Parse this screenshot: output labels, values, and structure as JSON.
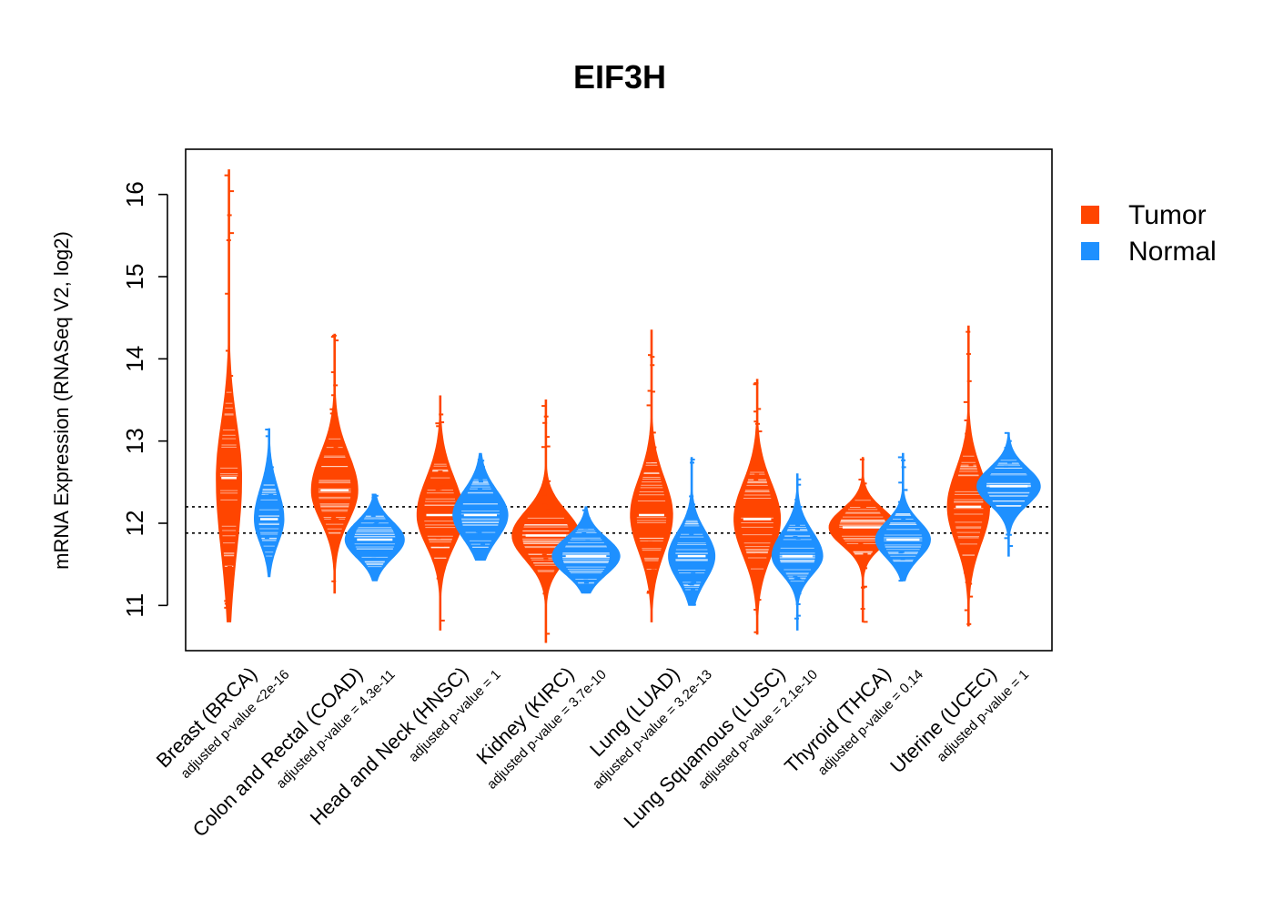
{
  "chart_data": {
    "type": "violin",
    "title": "EIF3H",
    "ylabel": "mRNA Expression (RNASeq V2, log2)",
    "xlabel": "",
    "ylim": [
      10.45,
      16.55
    ],
    "yticks": [
      11,
      12,
      13,
      14,
      15,
      16
    ],
    "grid": false,
    "legend_position": "top-right",
    "reference_lines": [
      11.88,
      12.2
    ],
    "series": [
      {
        "name": "Tumor",
        "color": "#FF4500"
      },
      {
        "name": "Normal",
        "color": "#1E90FF"
      }
    ],
    "categories": [
      {
        "label": "Breast (BRCA)",
        "pvalue": "adjusted p-value <2e-16",
        "tumor": {
          "median": 12.55,
          "q1": 11.95,
          "q3": 13.0,
          "min": 10.8,
          "max": 16.3,
          "width": 0.12
        },
        "normal": {
          "median": 12.05,
          "q1": 11.85,
          "q3": 12.3,
          "min": 11.35,
          "max": 13.15,
          "width": 0.14
        }
      },
      {
        "label": "Colon and Rectal (COAD)",
        "pvalue": "adjusted p-value = 4.3e-11",
        "tumor": {
          "median": 12.4,
          "q1": 12.15,
          "q3": 12.7,
          "min": 11.15,
          "max": 14.3,
          "width": 0.22
        },
        "normal": {
          "median": 11.8,
          "q1": 11.65,
          "q3": 11.95,
          "min": 11.3,
          "max": 12.35,
          "width": 0.28
        }
      },
      {
        "label": "Head and Neck (HNSC)",
        "pvalue": "adjusted p-value = 1",
        "tumor": {
          "median": 12.1,
          "q1": 11.85,
          "q3": 12.4,
          "min": 10.7,
          "max": 13.55,
          "width": 0.22
        },
        "normal": {
          "median": 12.1,
          "q1": 11.9,
          "q3": 12.3,
          "min": 11.55,
          "max": 12.85,
          "width": 0.26
        }
      },
      {
        "label": "Kidney (KIRC)",
        "pvalue": "adjusted p-value = 3.7e-10",
        "tumor": {
          "median": 11.85,
          "q1": 11.65,
          "q3": 12.05,
          "min": 10.55,
          "max": 13.5,
          "width": 0.32
        },
        "normal": {
          "median": 11.6,
          "q1": 11.45,
          "q3": 11.75,
          "min": 11.15,
          "max": 12.2,
          "width": 0.32
        }
      },
      {
        "label": "Lung (LUAD)",
        "pvalue": "adjusted p-value = 3.2e-13",
        "tumor": {
          "median": 12.1,
          "q1": 11.8,
          "q3": 12.4,
          "min": 10.8,
          "max": 14.35,
          "width": 0.2
        },
        "normal": {
          "median": 11.6,
          "q1": 11.4,
          "q3": 11.8,
          "min": 11.0,
          "max": 12.8,
          "width": 0.22
        }
      },
      {
        "label": "Lung Squamous (LUSC)",
        "pvalue": "adjusted p-value = 2.1e-10",
        "tumor": {
          "median": 12.05,
          "q1": 11.75,
          "q3": 12.35,
          "min": 10.65,
          "max": 13.75,
          "width": 0.22
        },
        "normal": {
          "median": 11.6,
          "q1": 11.45,
          "q3": 11.8,
          "min": 10.7,
          "max": 12.6,
          "width": 0.24
        }
      },
      {
        "label": "Thyroid (THCA)",
        "pvalue": "adjusted p-value = 0.14",
        "tumor": {
          "median": 11.95,
          "q1": 11.8,
          "q3": 12.1,
          "min": 10.8,
          "max": 12.8,
          "width": 0.32
        },
        "normal": {
          "median": 11.8,
          "q1": 11.65,
          "q3": 11.95,
          "min": 11.3,
          "max": 12.85,
          "width": 0.26
        }
      },
      {
        "label": "Uterine (UCEC)",
        "pvalue": "adjusted p-value = 1",
        "tumor": {
          "median": 12.2,
          "q1": 11.9,
          "q3": 12.5,
          "min": 10.75,
          "max": 14.4,
          "width": 0.2
        },
        "normal": {
          "median": 12.45,
          "q1": 12.3,
          "q3": 12.6,
          "min": 11.6,
          "max": 13.1,
          "width": 0.3
        }
      }
    ]
  }
}
